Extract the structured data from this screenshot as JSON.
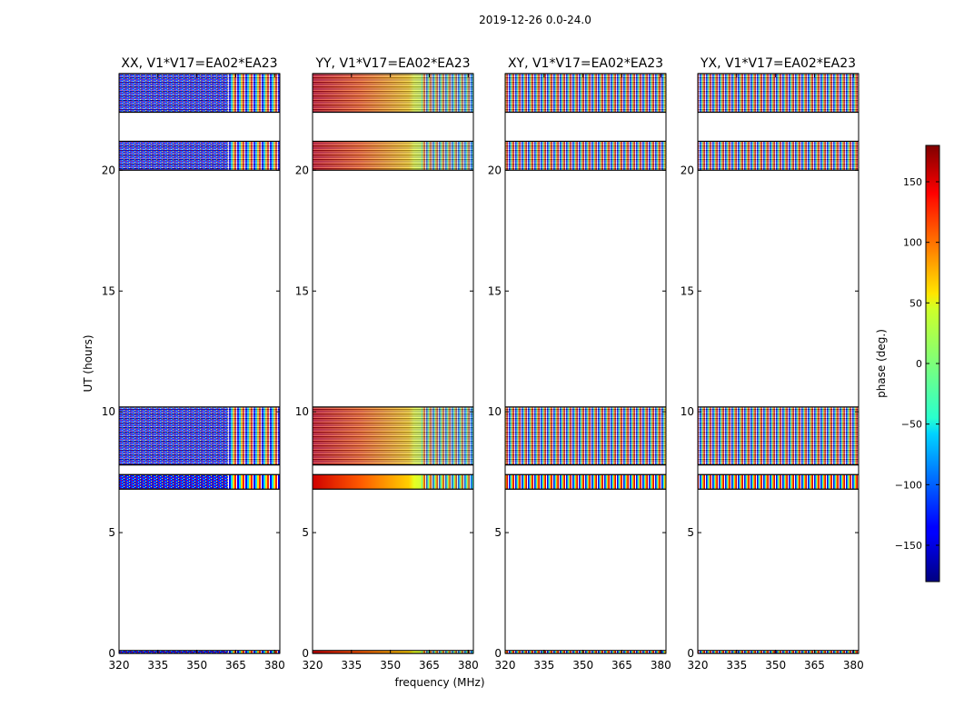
{
  "figure": {
    "suptitle": "2019-12-26 0.0-24.0"
  },
  "chart_data": {
    "type": "heatmap",
    "title": "2019-12-26 0.0-24.0",
    "xlabel": "frequency (MHz)",
    "ylabel": "UT (hours)",
    "xlim": [
      320,
      382
    ],
    "ylim": [
      0,
      24
    ],
    "x_ticks": [
      "320",
      "335",
      "350",
      "365",
      "380"
    ],
    "y_ticks": [
      "0",
      "5",
      "10",
      "15",
      "20"
    ],
    "panels": [
      {
        "title": "XX, V1*V17=EA02*EA23",
        "pol": "XX",
        "style": "xx"
      },
      {
        "title": "YY, V1*V17=EA02*EA23",
        "pol": "YY",
        "style": "yy"
      },
      {
        "title": "XY, V1*V17=EA02*EA23",
        "pol": "XY",
        "style": "cross"
      },
      {
        "title": "YX, V1*V17=EA02*EA23",
        "pol": "YX",
        "style": "cross"
      }
    ],
    "data_time_ranges_hours": [
      [
        0.0,
        0.12
      ],
      [
        6.8,
        7.4
      ],
      [
        7.8,
        10.2
      ],
      [
        20.0,
        21.2
      ],
      [
        22.4,
        24.0
      ]
    ],
    "colorbar": {
      "label": "phase (deg.)",
      "range": [
        -180,
        180
      ],
      "ticks": [
        "150",
        "100",
        "50",
        "0",
        "−50",
        "−100",
        "−150"
      ],
      "tick_values": [
        150,
        100,
        50,
        0,
        -50,
        -100,
        -150
      ],
      "colormap": "jet"
    }
  }
}
